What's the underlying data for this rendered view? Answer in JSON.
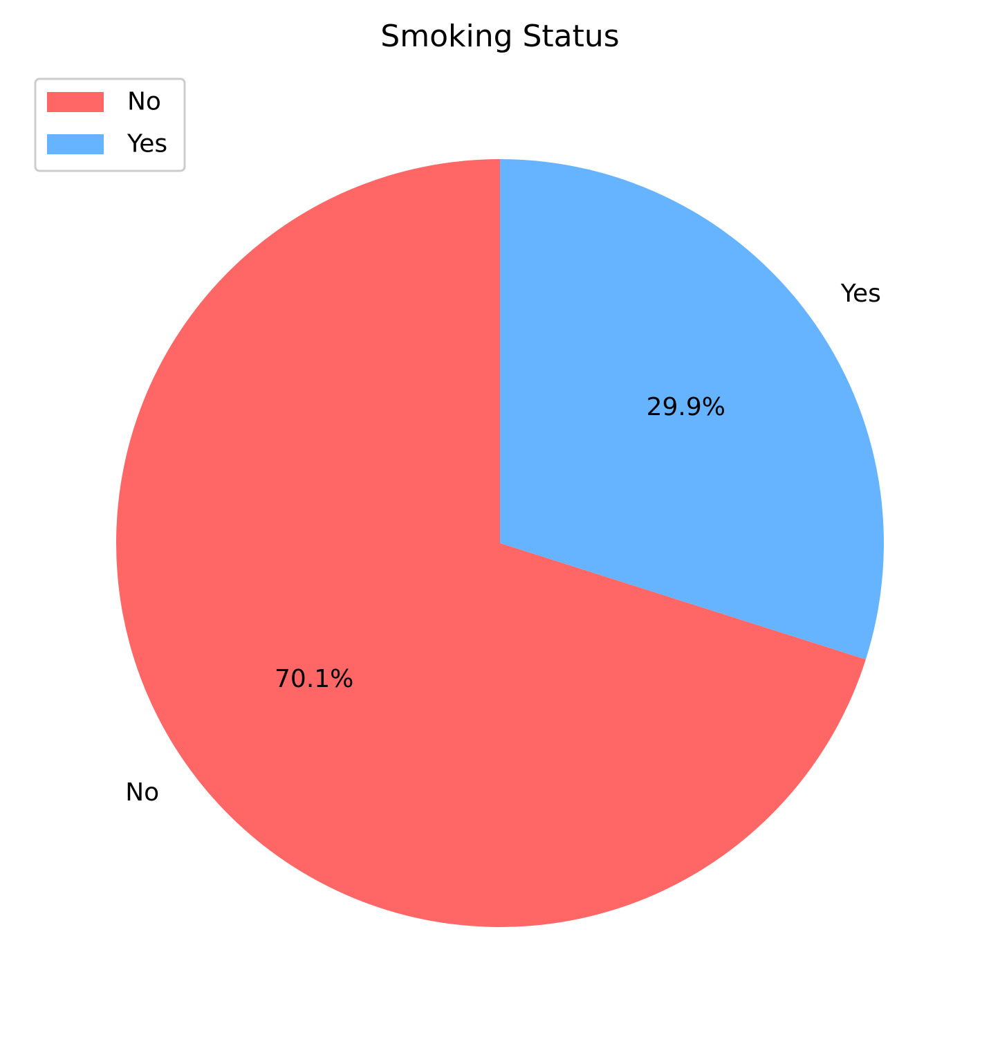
{
  "chart_data": {
    "type": "pie",
    "title": "Smoking Status",
    "categories": [
      "No",
      "Yes"
    ],
    "values": [
      70.1,
      29.9
    ],
    "value_labels": [
      "70.1%",
      "29.9%"
    ],
    "colors": [
      "#ff6666",
      "#66b3ff"
    ],
    "start_angle_deg": 90,
    "direction": "counterclockwise",
    "legend": {
      "placement": "upper-left",
      "entries": [
        "No",
        "Yes"
      ]
    }
  }
}
